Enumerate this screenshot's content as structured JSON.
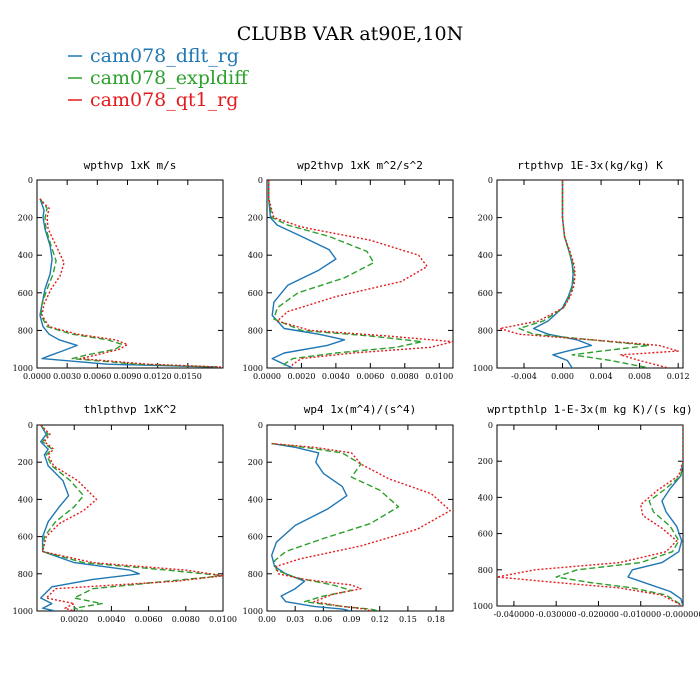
{
  "figure": {
    "title": "CLUBB VAR at90E,10N",
    "legend": [
      {
        "name": "cam078_dflt_rg",
        "color": "#1f77b4",
        "dash": "solid"
      },
      {
        "name": "cam078_expldiff",
        "color": "#2ca02c",
        "dash": "dashed"
      },
      {
        "name": "cam078_qt1_rg",
        "color": "#e41a1c",
        "dash": "dotted"
      }
    ]
  },
  "chart_data": [
    {
      "type": "line",
      "title": "wpthvp   1xK m/s",
      "xlim": [
        0,
        0.0185
      ],
      "ylim": [
        1000,
        0
      ],
      "xticks": [
        {
          "v": 0.0,
          "label": "0.0000"
        },
        {
          "v": 0.003,
          "label": "0.0030"
        },
        {
          "v": 0.006,
          "label": "0.0060"
        },
        {
          "v": 0.009,
          "label": "0.0090"
        },
        {
          "v": 0.012,
          "label": "0.0120"
        },
        {
          "v": 0.015,
          "label": "0.0150"
        }
      ],
      "yticks": [
        0,
        200,
        400,
        600,
        800,
        1000
      ],
      "series": [
        {
          "name": "cam078_dflt_rg",
          "x": [
            0.0003,
            0.0005,
            0.0007,
            0.0006,
            0.0008,
            0.0013,
            0.0015,
            0.0013,
            0.0008,
            0.0005,
            0.0003,
            0.0006,
            0.0012,
            0.0022,
            0.004,
            0.0025,
            0.0012,
            0.0005,
            0.007,
            0.018
          ],
          "y": [
            100,
            130,
            160,
            200,
            260,
            350,
            420,
            500,
            580,
            660,
            720,
            780,
            820,
            850,
            880,
            910,
            935,
            950,
            980,
            995
          ]
        },
        {
          "name": "cam078_expldiff",
          "x": [
            0.0003,
            0.0007,
            0.001,
            0.0008,
            0.0009,
            0.0014,
            0.0019,
            0.0016,
            0.001,
            0.0005,
            0.0004,
            0.001,
            0.0035,
            0.007,
            0.0085,
            0.0078,
            0.005,
            0.0035,
            0.01,
            0.018
          ],
          "y": [
            100,
            130,
            150,
            200,
            260,
            350,
            430,
            500,
            580,
            660,
            720,
            780,
            820,
            850,
            875,
            900,
            930,
            950,
            980,
            995
          ]
        },
        {
          "name": "cam078_qt1_rg",
          "x": [
            0.0003,
            0.0008,
            0.0012,
            0.001,
            0.0011,
            0.0019,
            0.0027,
            0.0023,
            0.0014,
            0.0007,
            0.0005,
            0.0012,
            0.004,
            0.0078,
            0.009,
            0.0082,
            0.006,
            0.0043,
            0.011,
            0.0185
          ],
          "y": [
            100,
            130,
            150,
            200,
            260,
            350,
            440,
            510,
            580,
            660,
            720,
            780,
            820,
            850,
            875,
            900,
            930,
            950,
            980,
            995
          ]
        }
      ]
    },
    {
      "type": "line",
      "title": "wp2thvp   1xK m^2/s^2",
      "xlim": [
        0,
        0.0108
      ],
      "ylim": [
        1000,
        0
      ],
      "xticks": [
        {
          "v": 0.0,
          "label": "0.0000"
        },
        {
          "v": 0.002,
          "label": "0.0020"
        },
        {
          "v": 0.004,
          "label": "0.0040"
        },
        {
          "v": 0.006,
          "label": "0.0060"
        },
        {
          "v": 0.008,
          "label": "0.0080"
        },
        {
          "v": 0.01,
          "label": "0.0100"
        }
      ],
      "yticks": [
        0,
        200,
        400,
        600,
        800,
        1000
      ],
      "series": [
        {
          "name": "cam078_dflt_rg",
          "x": [
            0.0001,
            0.0001,
            0.0002,
            0.0006,
            0.002,
            0.0036,
            0.004,
            0.003,
            0.0012,
            0.0004,
            0.0003,
            0.001,
            0.003,
            0.0045,
            0.0035,
            0.001,
            0.0003,
            0.001,
            0.0015
          ],
          "y": [
            0,
            100,
            200,
            240,
            300,
            370,
            420,
            480,
            560,
            650,
            720,
            790,
            820,
            850,
            880,
            920,
            950,
            980,
            1000
          ]
        },
        {
          "name": "cam078_expldiff",
          "x": [
            0.0001,
            0.0001,
            0.0003,
            0.0012,
            0.0036,
            0.0058,
            0.0062,
            0.0045,
            0.0018,
            0.0006,
            0.0004,
            0.002,
            0.006,
            0.009,
            0.0075,
            0.004,
            0.0015,
            0.001,
            0.001
          ],
          "y": [
            0,
            100,
            200,
            240,
            300,
            380,
            440,
            520,
            600,
            680,
            740,
            800,
            830,
            860,
            890,
            920,
            950,
            980,
            1000
          ]
        },
        {
          "name": "cam078_qt1_rg",
          "x": [
            0.0001,
            0.0001,
            0.0004,
            0.002,
            0.006,
            0.0088,
            0.0093,
            0.0078,
            0.004,
            0.0012,
            0.0006,
            0.0025,
            0.007,
            0.0108,
            0.0095,
            0.005,
            0.002,
            0.0015,
            0.0014
          ],
          "y": [
            0,
            100,
            200,
            250,
            320,
            400,
            460,
            540,
            620,
            700,
            750,
            800,
            830,
            860,
            890,
            920,
            950,
            980,
            1000
          ]
        }
      ]
    },
    {
      "type": "line",
      "title": "rtpthvp   1E-3x(kg/kg) K",
      "xlim": [
        -0.0068,
        0.0125
      ],
      "ylim": [
        1000,
        0
      ],
      "xticks": [
        {
          "v": -0.004,
          "label": "-0.004"
        },
        {
          "v": 0.0,
          "label": "0.000"
        },
        {
          "v": 0.004,
          "label": "0.004"
        },
        {
          "v": 0.008,
          "label": "0.008"
        },
        {
          "v": 0.012,
          "label": "0.012"
        }
      ],
      "yticks": [
        0,
        200,
        400,
        600,
        800,
        1000
      ],
      "series": [
        {
          "name": "cam078_dflt_rg",
          "x": [
            0.0,
            0.0,
            0.0,
            0.0002,
            0.0008,
            0.001,
            0.0011,
            0.001,
            0.0006,
            0.0,
            -0.0015,
            -0.003,
            -0.0015,
            0.0015,
            0.003,
            0.0005,
            -0.001,
            0.0005,
            0.001
          ],
          "y": [
            0,
            100,
            200,
            300,
            400,
            450,
            500,
            560,
            620,
            680,
            750,
            790,
            820,
            850,
            880,
            910,
            930,
            960,
            1000
          ]
        },
        {
          "name": "cam078_expldiff",
          "x": [
            0.0,
            0.0,
            0.0,
            0.0002,
            0.0008,
            0.0011,
            0.0012,
            0.0011,
            0.0007,
            0.0001,
            -0.002,
            -0.0045,
            -0.003,
            0.003,
            0.009,
            0.004,
            0.001,
            0.005,
            0.009
          ],
          "y": [
            0,
            100,
            200,
            300,
            400,
            450,
            500,
            560,
            620,
            680,
            750,
            790,
            820,
            850,
            880,
            910,
            930,
            960,
            1000
          ]
        },
        {
          "name": "cam078_qt1_rg",
          "x": [
            0.0,
            0.0,
            0.0,
            0.0002,
            0.0009,
            0.0012,
            0.0013,
            0.0012,
            0.0008,
            0.0001,
            -0.0025,
            -0.0065,
            -0.0045,
            0.003,
            0.01,
            0.012,
            0.006,
            0.008,
            0.011
          ],
          "y": [
            0,
            100,
            200,
            300,
            400,
            450,
            500,
            560,
            620,
            680,
            750,
            790,
            820,
            850,
            880,
            910,
            930,
            960,
            1000
          ]
        }
      ]
    },
    {
      "type": "line",
      "title": "thlpthvp   1xK^2",
      "xlim": [
        0,
        0.01
      ],
      "ylim": [
        1000,
        0
      ],
      "xticks": [
        {
          "v": 0.002,
          "label": "0.0020"
        },
        {
          "v": 0.004,
          "label": "0.0040"
        },
        {
          "v": 0.006,
          "label": "0.0060"
        },
        {
          "v": 0.008,
          "label": "0.0080"
        },
        {
          "v": 0.01,
          "label": "0.0100"
        }
      ],
      "yticks": [
        0,
        200,
        400,
        600,
        800,
        1000
      ],
      "series": [
        {
          "name": "cam078_dflt_rg",
          "x": [
            0.0002,
            0.0005,
            0.0002,
            0.0006,
            0.0004,
            0.0006,
            0.0014,
            0.0017,
            0.0012,
            0.0006,
            0.0003,
            0.0003,
            0.002,
            0.005,
            0.0055,
            0.003,
            0.0008,
            0.0002,
            0.0008,
            0.0003,
            0.001
          ],
          "y": [
            0,
            50,
            90,
            130,
            160,
            220,
            300,
            380,
            440,
            520,
            600,
            680,
            740,
            780,
            800,
            830,
            870,
            930,
            960,
            985,
            1000
          ]
        },
        {
          "name": "cam078_expldiff",
          "x": [
            0.0002,
            0.0006,
            0.0003,
            0.0008,
            0.0005,
            0.0008,
            0.0018,
            0.0025,
            0.002,
            0.001,
            0.0004,
            0.0003,
            0.0025,
            0.007,
            0.01,
            0.007,
            0.003,
            0.002,
            0.0035,
            0.002,
            0.0025
          ],
          "y": [
            0,
            50,
            90,
            130,
            160,
            220,
            300,
            380,
            440,
            520,
            600,
            680,
            740,
            780,
            810,
            840,
            880,
            930,
            960,
            985,
            1000
          ]
        },
        {
          "name": "cam078_qt1_rg",
          "x": [
            0.0002,
            0.0007,
            0.0004,
            0.0009,
            0.0006,
            0.0009,
            0.0022,
            0.0032,
            0.0025,
            0.0012,
            0.0005,
            0.0003,
            0.003,
            0.008,
            0.01,
            0.0075,
            0.001,
            0.0005,
            0.002,
            0.0015,
            0.002
          ],
          "y": [
            0,
            50,
            90,
            130,
            160,
            220,
            300,
            400,
            460,
            530,
            600,
            680,
            740,
            780,
            810,
            840,
            880,
            930,
            960,
            985,
            1000
          ]
        }
      ]
    },
    {
      "type": "line",
      "title": "wp4   1x(m^4)/(s^4)",
      "xlim": [
        0,
        0.198
      ],
      "ylim": [
        1000,
        0
      ],
      "xticks": [
        {
          "v": 0.0,
          "label": "0.00"
        },
        {
          "v": 0.03,
          "label": "0.03"
        },
        {
          "v": 0.06,
          "label": "0.06"
        },
        {
          "v": 0.09,
          "label": "0.09"
        },
        {
          "v": 0.12,
          "label": "0.12"
        },
        {
          "v": 0.15,
          "label": "0.15"
        },
        {
          "v": 0.18,
          "label": "0.18"
        }
      ],
      "yticks": [
        0,
        200,
        400,
        600,
        800,
        1000
      ],
      "series": [
        {
          "name": "cam078_dflt_rg",
          "x": [
            0.005,
            0.03,
            0.055,
            0.052,
            0.06,
            0.08,
            0.085,
            0.065,
            0.03,
            0.01,
            0.005,
            0.008,
            0.02,
            0.04,
            0.03,
            0.015,
            0.02,
            0.05,
            0.08,
            0.09
          ],
          "y": [
            100,
            120,
            150,
            200,
            260,
            330,
            380,
            450,
            540,
            630,
            700,
            760,
            800,
            840,
            880,
            920,
            950,
            975,
            990,
            1000
          ]
        },
        {
          "name": "cam078_expldiff",
          "x": [
            0.005,
            0.04,
            0.08,
            0.1,
            0.09,
            0.12,
            0.14,
            0.11,
            0.06,
            0.02,
            0.008,
            0.01,
            0.03,
            0.07,
            0.09,
            0.06,
            0.04,
            0.08,
            0.11,
            0.12
          ],
          "y": [
            100,
            120,
            150,
            210,
            280,
            350,
            440,
            530,
            610,
            680,
            730,
            780,
            820,
            860,
            890,
            920,
            950,
            975,
            990,
            1000
          ]
        },
        {
          "name": "cam078_qt1_rg",
          "x": [
            0.005,
            0.05,
            0.09,
            0.1,
            0.13,
            0.175,
            0.195,
            0.16,
            0.1,
            0.035,
            0.01,
            0.012,
            0.04,
            0.09,
            0.1,
            0.07,
            0.05,
            0.08,
            0.105,
            0.11
          ],
          "y": [
            100,
            120,
            150,
            210,
            290,
            370,
            460,
            560,
            650,
            720,
            760,
            800,
            830,
            860,
            880,
            910,
            950,
            975,
            990,
            1000
          ]
        }
      ]
    },
    {
      "type": "line",
      "title": "wprtpthlp   1-E-3x(m kg K)/(s kg)",
      "xlim": [
        -0.044,
        0.0
      ],
      "ylim": [
        1000,
        0
      ],
      "xticks": [
        {
          "v": -0.04,
          "label": "-0.040000"
        },
        {
          "v": -0.03,
          "label": "-0.030000"
        },
        {
          "v": -0.02,
          "label": "-0.020000"
        },
        {
          "v": -0.01,
          "label": "-0.010000"
        },
        {
          "v": 0.0,
          "label": "-0.000000"
        }
      ],
      "yticks": [
        0,
        200,
        400,
        600,
        800,
        1000
      ],
      "series": [
        {
          "name": "cam078_dflt_rg",
          "x": [
            0.0,
            0.0,
            -0.0005,
            -0.003,
            -0.005,
            -0.004,
            -0.0015,
            -0.0003,
            -0.001,
            -0.005,
            -0.012,
            -0.013,
            -0.008,
            -0.003,
            -0.0005,
            0.0
          ],
          "y": [
            0,
            200,
            280,
            350,
            420,
            480,
            560,
            640,
            700,
            760,
            800,
            840,
            880,
            920,
            960,
            1000
          ]
        },
        {
          "name": "cam078_expldiff",
          "x": [
            0.0,
            0.0,
            -0.0005,
            -0.004,
            -0.008,
            -0.007,
            -0.003,
            -0.001,
            -0.0025,
            -0.01,
            -0.025,
            -0.03,
            -0.022,
            -0.012,
            -0.004,
            0.0
          ],
          "y": [
            0,
            200,
            280,
            350,
            420,
            480,
            560,
            640,
            700,
            760,
            800,
            840,
            870,
            900,
            940,
            1000
          ]
        },
        {
          "name": "cam078_qt1_rg",
          "x": [
            0.0,
            0.0,
            -0.001,
            -0.006,
            -0.01,
            -0.0095,
            -0.005,
            -0.0015,
            -0.004,
            -0.015,
            -0.035,
            -0.044,
            -0.03,
            -0.015,
            -0.005,
            0.0
          ],
          "y": [
            0,
            200,
            280,
            360,
            440,
            500,
            570,
            640,
            700,
            760,
            800,
            840,
            870,
            900,
            940,
            1000
          ]
        }
      ]
    }
  ]
}
